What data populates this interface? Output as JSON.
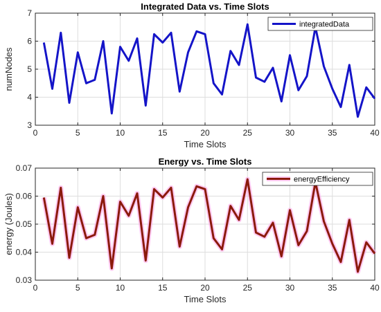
{
  "chart_data": [
    {
      "type": "line",
      "title": "Integrated Data vs. Time Slots",
      "xlabel": "Time Slots",
      "ylabel": "numNodes",
      "xlim": [
        0,
        40
      ],
      "ylim": [
        3,
        7
      ],
      "xticks": [
        0,
        5,
        10,
        15,
        20,
        25,
        30,
        35,
        40
      ],
      "yticks": [
        3,
        4,
        5,
        6,
        7
      ],
      "ytick_labels": [
        "3",
        "4",
        "5",
        "6",
        "7"
      ],
      "grid": true,
      "legend_position": "top-right",
      "x": [
        1,
        2,
        3,
        4,
        5,
        6,
        7,
        8,
        9,
        10,
        11,
        12,
        13,
        14,
        15,
        16,
        17,
        18,
        19,
        20,
        21,
        22,
        23,
        24,
        25,
        26,
        27,
        28,
        29,
        30,
        31,
        32,
        33,
        34,
        35,
        36,
        37,
        38,
        39,
        40
      ],
      "series": [
        {
          "name": "integratedData",
          "color": "#1414c8",
          "values": [
            5.95,
            4.3,
            6.3,
            3.8,
            5.6,
            4.5,
            4.62,
            6.0,
            3.42,
            5.8,
            5.3,
            6.1,
            3.7,
            6.25,
            5.95,
            6.3,
            4.2,
            5.6,
            6.35,
            6.25,
            4.5,
            4.1,
            5.65,
            5.15,
            6.6,
            4.7,
            4.55,
            5.05,
            3.85,
            5.5,
            4.25,
            4.75,
            6.5,
            5.1,
            4.3,
            3.65,
            5.15,
            3.3,
            4.35,
            3.95
          ]
        }
      ]
    },
    {
      "type": "line",
      "title": "Energy vs. Time Slots",
      "xlabel": "Time Slots",
      "ylabel": "energy (Joules)",
      "xlim": [
        0,
        40
      ],
      "ylim": [
        0.03,
        0.07
      ],
      "xticks": [
        0,
        5,
        10,
        15,
        20,
        25,
        30,
        35,
        40
      ],
      "yticks": [
        0.03,
        0.04,
        0.05,
        0.06,
        0.07
      ],
      "ytick_labels": [
        "0.03",
        "0.04",
        "0.05",
        "0.06",
        "0.07"
      ],
      "grid": true,
      "legend_position": "top-right",
      "x": [
        1,
        2,
        3,
        4,
        5,
        6,
        7,
        8,
        9,
        10,
        11,
        12,
        13,
        14,
        15,
        16,
        17,
        18,
        19,
        20,
        21,
        22,
        23,
        24,
        25,
        26,
        27,
        28,
        29,
        30,
        31,
        32,
        33,
        34,
        35,
        36,
        37,
        38,
        39,
        40
      ],
      "series": [
        {
          "name": "energyEfficiency",
          "color": "#8b1a0c",
          "glow_color": "#ff9ee8",
          "values": [
            0.0595,
            0.043,
            0.063,
            0.038,
            0.056,
            0.045,
            0.0462,
            0.06,
            0.0342,
            0.058,
            0.053,
            0.061,
            0.037,
            0.0625,
            0.0595,
            0.063,
            0.042,
            0.056,
            0.0635,
            0.0625,
            0.045,
            0.041,
            0.0565,
            0.0515,
            0.066,
            0.047,
            0.0455,
            0.0505,
            0.0385,
            0.055,
            0.0425,
            0.0475,
            0.065,
            0.051,
            0.043,
            0.0365,
            0.0515,
            0.033,
            0.0435,
            0.0395
          ]
        }
      ]
    }
  ]
}
